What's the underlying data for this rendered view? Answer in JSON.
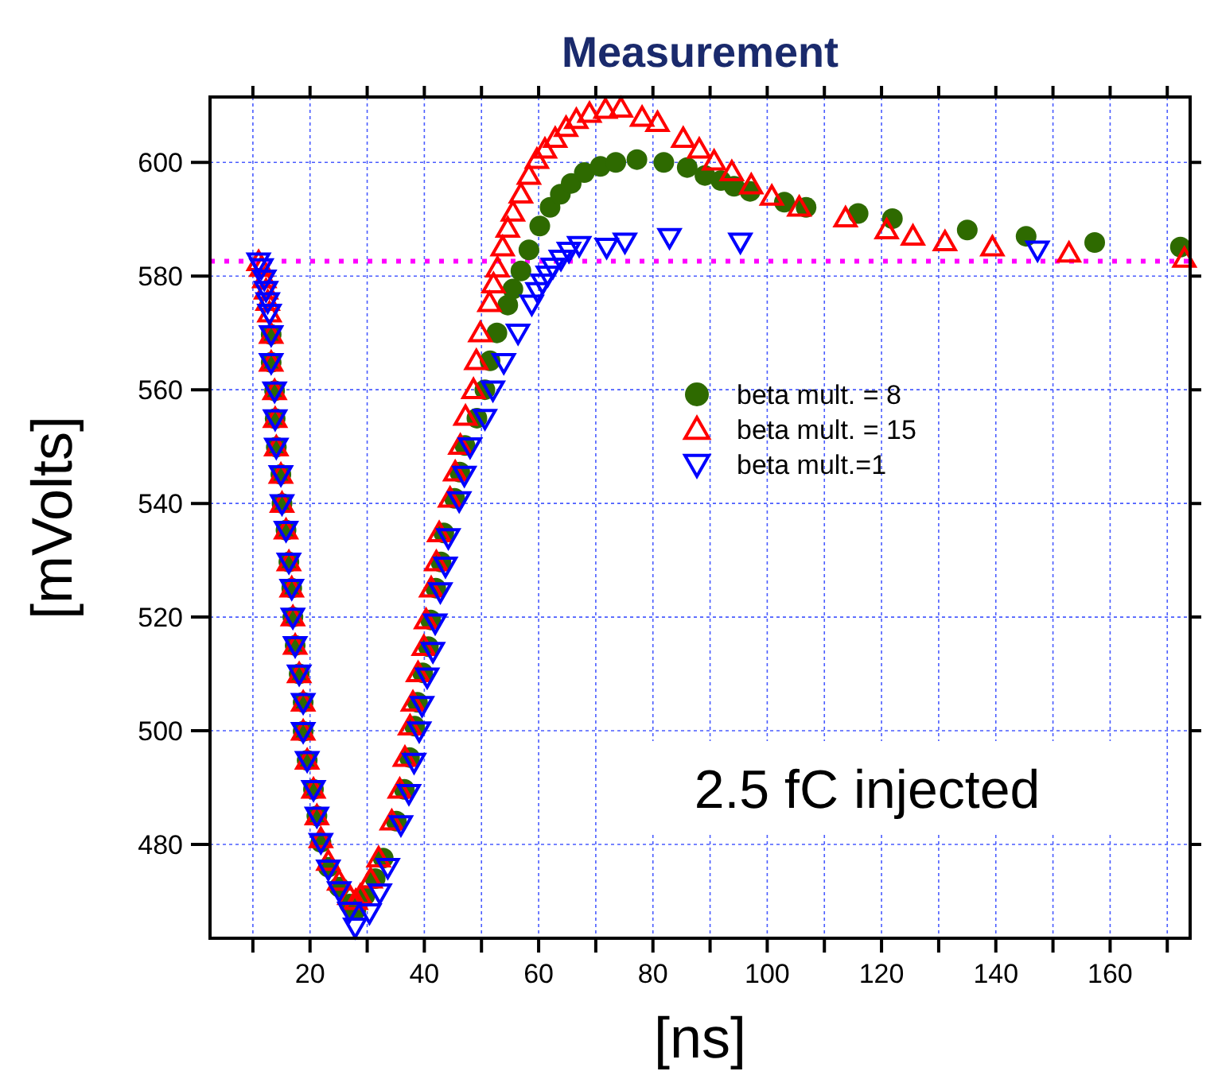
{
  "chart_data": {
    "type": "scatter",
    "title": "Measurement",
    "xlabel": "[ns]",
    "ylabel": "[mVolts]",
    "xlim": [
      2.5,
      174
    ],
    "ylim": [
      463.5,
      611.5
    ],
    "xticks": [
      {
        "value": 10,
        "label": null
      },
      20,
      {
        "value": 30,
        "label": null
      },
      40,
      {
        "value": 50,
        "label": null
      },
      60,
      {
        "value": 70,
        "label": null
      },
      80,
      {
        "value": 90,
        "label": null
      },
      100,
      {
        "value": 110,
        "label": null
      },
      120,
      {
        "value": 130,
        "label": null
      },
      140,
      {
        "value": 150,
        "label": null
      },
      160,
      {
        "value": 170,
        "label": null
      }
    ],
    "yticks": [
      480,
      500,
      520,
      540,
      560,
      580,
      600
    ],
    "grid": true,
    "legend": "right",
    "ref_lines": [
      {
        "axis": "y",
        "value": 582.6,
        "color": "#ff00ff",
        "line_style": "dotted"
      }
    ],
    "annotations": [
      "2.5 fC injected"
    ],
    "series": [
      {
        "name": "beta mult. = 8",
        "color": "#2e6a00",
        "marker": "circle",
        "x": [
          13.2,
          13.2,
          13.8,
          13.9,
          14.1,
          14.9,
          15.1,
          15.8,
          16.3,
          16.8,
          17.0,
          17.4,
          18.1,
          18.8,
          18.8,
          19.5,
          20.6,
          21.2,
          21.9,
          23.2,
          25.1,
          26.9,
          28.0,
          29.6,
          31.4,
          32.8,
          35.1,
          36.5,
          37.4,
          38.3,
          38.8,
          39.7,
          40.7,
          41.1,
          42.0,
          42.9,
          43.4,
          45.3,
          46.2,
          47.1,
          49.2,
          50.6,
          51.5,
          52.7,
          54.6,
          55.5,
          56.9,
          58.3,
          60.2,
          62.0,
          63.8,
          65.7,
          68.0,
          70.8,
          73.5,
          77.2,
          81.9,
          86.0,
          89.1,
          91.9,
          94.2,
          97.0,
          103.0,
          106.8,
          115.9,
          121.9,
          135.0,
          145.3,
          157.3,
          172.3
        ],
        "values": [
          569.7,
          564.8,
          559.8,
          554.9,
          549.9,
          545.1,
          540.0,
          535.3,
          529.7,
          525.1,
          520.0,
          515.0,
          510.0,
          505.0,
          499.9,
          494.8,
          489.7,
          485.0,
          480.4,
          476.0,
          472.5,
          469.5,
          468.5,
          471,
          474,
          477.6,
          484.1,
          489.7,
          495.3,
          500.8,
          505,
          510.2,
          514.8,
          519.5,
          525.1,
          529.7,
          534.8,
          540.9,
          545.5,
          550.2,
          555,
          560,
          565.1,
          570,
          574.9,
          577.7,
          580.9,
          584.6,
          588.8,
          592.1,
          594.4,
          596.3,
          598.2,
          599.3,
          600,
          600.5,
          600,
          599.1,
          597.7,
          596.8,
          595.8,
          594.9,
          593.0,
          592.1,
          591.0,
          590.1,
          588.1,
          587.0,
          585.9,
          585.1
        ]
      },
      {
        "name": "beta mult. = 15",
        "color": "#ff0000",
        "marker": "triangle",
        "x": [
          11.0,
          11.5,
          12.0,
          12.3,
          12.6,
          12.9,
          13.2,
          13.2,
          13.8,
          13.9,
          14.1,
          14.9,
          15.1,
          15.8,
          16.3,
          16.8,
          17.0,
          17.4,
          18.1,
          18.8,
          18.8,
          19.5,
          20.6,
          21.2,
          21.9,
          23.2,
          25.1,
          26.9,
          28.0,
          28.8,
          30.6,
          32.0,
          34.3,
          35.7,
          36.6,
          37.5,
          38.0,
          38.9,
          39.9,
          40.3,
          41.2,
          42.1,
          42.6,
          44.5,
          45.4,
          46.3,
          47.2,
          48.6,
          49.1,
          49.8,
          51.4,
          52.1,
          52.8,
          53.7,
          54.6,
          55.5,
          56.9,
          58.3,
          59.7,
          61.1,
          62.9,
          64.8,
          66.6,
          68.9,
          71.7,
          74.4,
          78.1,
          80.8,
          85.3,
          88.1,
          90.7,
          93.8,
          97.2,
          100.8,
          105.6,
          113.7,
          120.9,
          125.5,
          131.1,
          139.4,
          152.8,
          173.0
        ],
        "values": [
          582.5,
          581.5,
          579.5,
          577.5,
          575.5,
          573.5,
          569.7,
          564.8,
          559.8,
          554.9,
          549.9,
          545.1,
          540.0,
          535.3,
          529.7,
          525.1,
          520.0,
          515.0,
          510.0,
          505.0,
          499.9,
          494.8,
          489.7,
          485.0,
          481.0,
          477.0,
          473.5,
          471.0,
          470.1,
          471.0,
          473.9,
          477.6,
          484.1,
          489.7,
          495.3,
          500.8,
          505.0,
          510.2,
          514.8,
          519.5,
          525.1,
          529.7,
          534.8,
          540.9,
          545.5,
          550.2,
          555.3,
          560.0,
          565.1,
          570.0,
          575.3,
          578.6,
          581.4,
          585.1,
          588.4,
          591.2,
          594.4,
          597.7,
          600.5,
          602.3,
          604.2,
          606.1,
          607.5,
          608.6,
          609.3,
          609.5,
          607.9,
          607.0,
          604.2,
          602.3,
          600.2,
          598.3,
          596.0,
          594.0,
          592.1,
          590.2,
          588.1,
          587.0,
          586.0,
          585.1,
          584.0,
          583.1
        ]
      },
      {
        "name": "beta mult.=1",
        "color": "#0000ff",
        "marker": "triangle-down",
        "x": [
          11.0,
          11.5,
          12.0,
          12.3,
          12.6,
          12.9,
          13.2,
          13.2,
          13.8,
          13.9,
          14.1,
          14.9,
          15.1,
          15.8,
          16.3,
          16.8,
          17.0,
          17.4,
          18.1,
          18.8,
          18.8,
          19.5,
          20.6,
          21.2,
          21.9,
          23.2,
          25.1,
          26.9,
          27.9,
          30.4,
          32.2,
          33.6,
          35.9,
          37.3,
          38.2,
          39.1,
          39.6,
          40.5,
          41.5,
          41.9,
          42.8,
          43.7,
          44.2,
          46.1,
          47.0,
          48.0,
          50.6,
          52.0,
          53.9,
          56.4,
          58.8,
          59.8,
          60.7,
          61.6,
          62.5,
          63.9,
          65.3,
          67.1,
          71.9,
          75.1,
          82.9,
          95.3,
          147.3
        ],
        "values": [
          582.5,
          581.5,
          579.5,
          577.5,
          575.5,
          573.5,
          569.7,
          564.8,
          559.8,
          554.9,
          549.9,
          545.1,
          540.0,
          535.3,
          529.7,
          525.1,
          520.0,
          515.0,
          510.0,
          505.0,
          499.9,
          494.8,
          489.7,
          485.0,
          480.4,
          475.7,
          471.9,
          468.3,
          465.5,
          468,
          471.5,
          476,
          483.5,
          489,
          494.5,
          500,
          504.5,
          509.5,
          514,
          519,
          524.5,
          529,
          534,
          540.5,
          545,
          550,
          555,
          560,
          564.8,
          570.0,
          575.1,
          577.3,
          578.8,
          580.2,
          581.6,
          583.0,
          584.4,
          585.4,
          585.1,
          586.0,
          586.8,
          586.0,
          584.6
        ]
      }
    ]
  }
}
